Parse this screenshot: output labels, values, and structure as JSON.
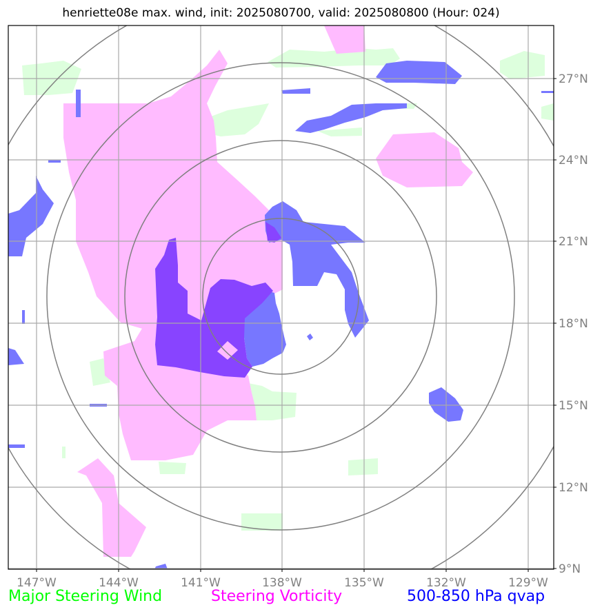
{
  "title": "henriette08e max. wind, init: 2025080700, valid: 2025080800 (Hour: 024)",
  "lon_labels": [
    "147°W",
    "144°W",
    "141°W",
    "138°W",
    "135°W",
    "132°W",
    "129°W"
  ],
  "lat_labels": [
    "27°N",
    "24°N",
    "21°N",
    "18°N",
    "15°N",
    "12°N",
    "9°N"
  ],
  "legend": {
    "green": {
      "label": "Major Steering Wind",
      "color": "#00ff00"
    },
    "magenta": {
      "label": "Steering Vorticity",
      "color": "#ff00ff"
    },
    "blue": {
      "label": "500-850 hPa qvap",
      "color": "#0000ff"
    }
  },
  "colors": {
    "green_fill": "#ddffdd",
    "magenta_fill": "#ffbbff",
    "blue_fill": "#7777ff",
    "purple_fill": "#8844ff",
    "grid": "#a9a9a9",
    "ring": "#808080"
  }
}
